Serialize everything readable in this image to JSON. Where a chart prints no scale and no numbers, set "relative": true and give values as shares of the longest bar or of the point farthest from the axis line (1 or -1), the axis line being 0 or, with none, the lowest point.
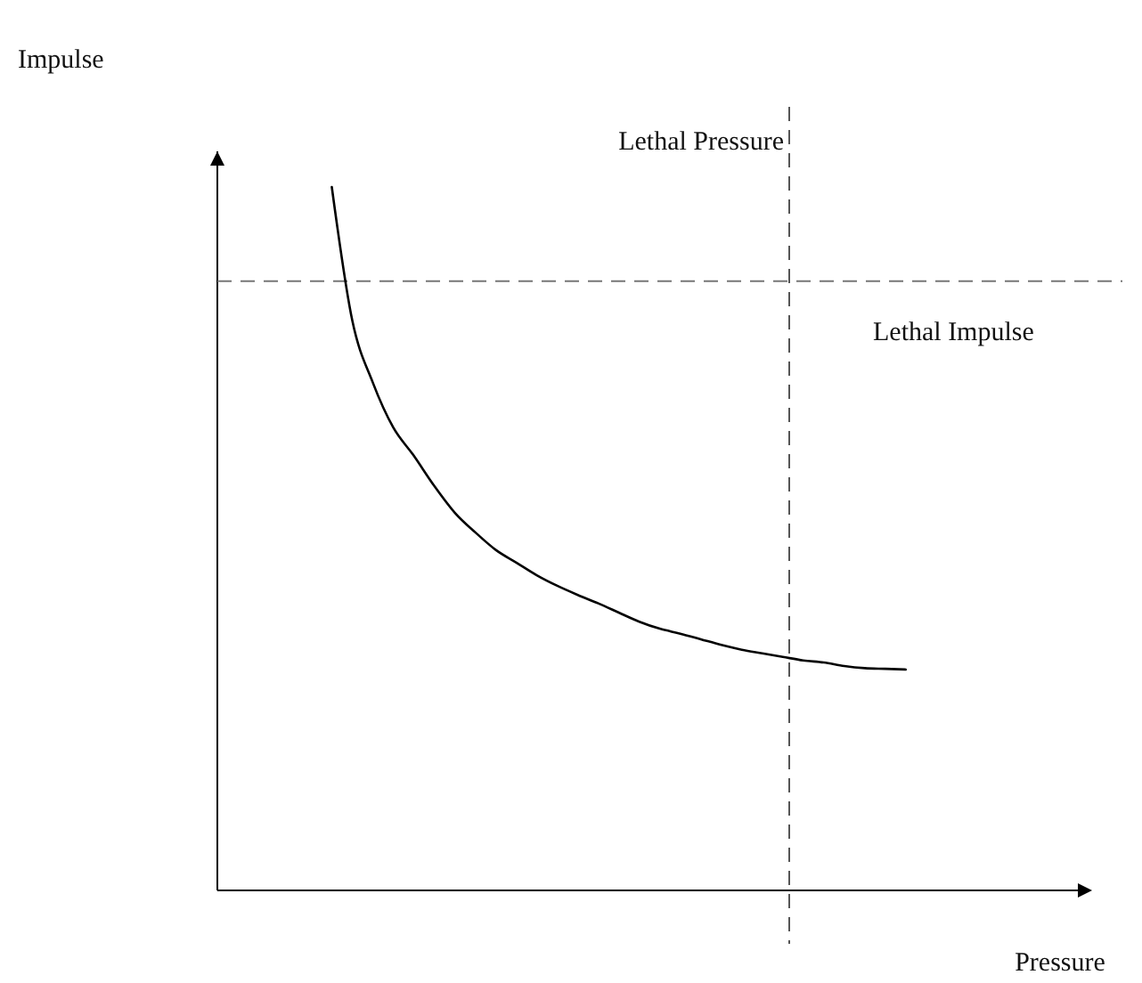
{
  "chart_data": {
    "type": "line",
    "relative": true,
    "xlabel": "Pressure",
    "marker": "none",
    "line_style": "solid",
    "categories": [
      null,
      null,
      null,
      null,
      null,
      null,
      null,
      null,
      null,
      null,
      null,
      null,
      null,
      null,
      null,
      null,
      null,
      null,
      null,
      null,
      null,
      null,
      null,
      null,
      null,
      null,
      null,
      null,
      null
    ],
    "series": [
      {
        "color": "#000000",
        "values": [
          1,
          0.81,
          0.722,
          0.658,
          0.618,
          0.575,
          0.537,
          0.509,
          0.484,
          0.466,
          0.448,
          0.433,
          0.42,
          0.408,
          0.395,
          0.382,
          0.372,
          0.365,
          0.357,
          0.349,
          0.342,
          0.337,
          0.332,
          0.327,
          0.324,
          0.319,
          0.316,
          0.315,
          0.314
        ]
      }
    ],
    "ref_lines": [
      {
        "axis": "y",
        "value": 0.866,
        "label": "Lethal Impulse",
        "color": "#777777",
        "line_style": "dashed"
      }
    ],
    "annotations": [
      "Lethal Pressure",
      "Impulse"
    ]
  }
}
